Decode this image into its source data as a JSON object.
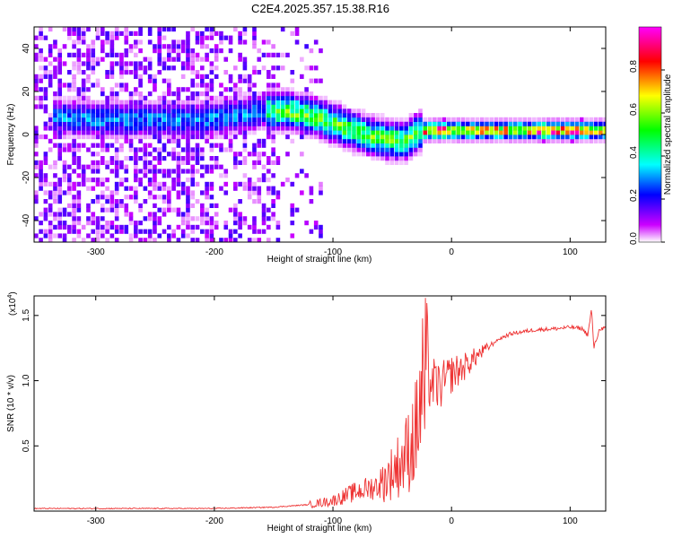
{
  "title": "C2E4.2025.357.15.38.R16",
  "chart_data": [
    {
      "type": "heatmap",
      "xlabel": "Height of straight line (km)",
      "ylabel": "Frequency (Hz)",
      "xlim": [
        -352,
        130
      ],
      "ylim": [
        -50,
        50
      ],
      "xticks": [
        -300,
        -200,
        -100,
        0,
        100
      ],
      "yticks": [
        -40,
        -20,
        0,
        20,
        40
      ],
      "grid": false,
      "colorbar": {
        "label": "Normalized spectral amplitude",
        "range": [
          0,
          1
        ],
        "ticks": [
          "0.0",
          "0.2",
          "0.4",
          "0.6",
          "0.8"
        ],
        "tick_values": [
          0.0,
          0.2,
          0.4,
          0.6,
          0.8
        ],
        "colormap": [
          "#ffffff",
          "#cc00ff",
          "#0000ff",
          "#00ffff",
          "#00ff00",
          "#ffff00",
          "#ff0000",
          "#ff00ff"
        ]
      },
      "ridge": {
        "x": [
          -330,
          -300,
          -260,
          -210,
          -180,
          -160,
          -140,
          -120,
          -100,
          -80,
          -60,
          -40,
          -30,
          -20,
          0,
          40,
          80,
          110,
          130
        ],
        "y": [
          7,
          6,
          6,
          6,
          8,
          10,
          10,
          8,
          4,
          0,
          -3,
          -4,
          0,
          1,
          1,
          1,
          1,
          1,
          1
        ]
      }
    },
    {
      "type": "line",
      "xlabel": "Height of straight line (km)",
      "ylabel": "SNR (10 * v/v)",
      "yscale_label": "(x10",
      "yscale_exp": "4",
      "yscale_close": ")",
      "xlim": [
        -352,
        130
      ],
      "ylim": [
        0,
        1.65
      ],
      "xticks": [
        -300,
        -200,
        -100,
        0,
        100
      ],
      "yticks": [
        0.5,
        1.0,
        1.5
      ],
      "ytick_labels": [
        "0.5",
        "1.0",
        "1.5"
      ],
      "color": "#ee3333",
      "grid": false,
      "series": [
        {
          "x": [
            -352,
            -300,
            -250,
            -200,
            -150,
            -120,
            -100,
            -80,
            -60,
            -50,
            -40,
            -30,
            -25,
            -20,
            -10,
            0,
            10,
            20,
            30,
            40,
            50,
            70,
            90,
            100,
            110,
            115,
            118,
            120,
            125,
            130
          ],
          "y": [
            0.02,
            0.02,
            0.02,
            0.02,
            0.03,
            0.05,
            0.08,
            0.15,
            0.2,
            0.3,
            0.4,
            0.6,
            0.9,
            1.0,
            0.95,
            1.05,
            1.1,
            1.18,
            1.25,
            1.32,
            1.36,
            1.39,
            1.4,
            1.41,
            1.4,
            1.35,
            1.55,
            1.25,
            1.4,
            1.4
          ]
        }
      ]
    }
  ]
}
